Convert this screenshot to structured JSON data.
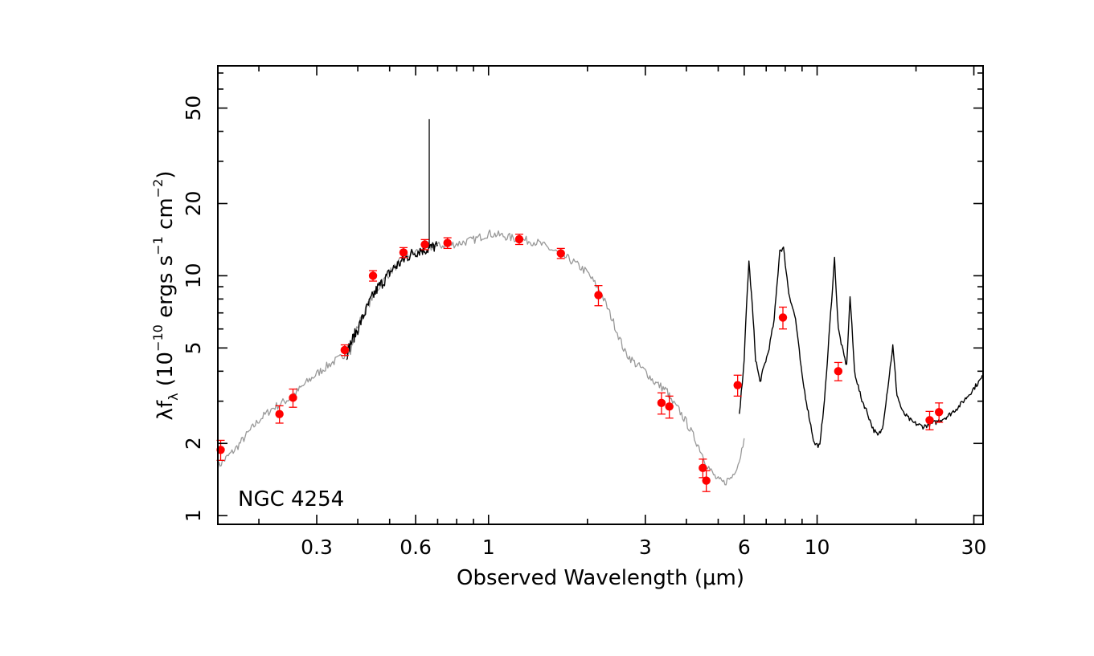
{
  "chart_data": {
    "type": "line",
    "annotation": "NGC 4254",
    "xlabel": "Observed Wavelength (μm)",
    "ylabel": {
      "prefix": "λf",
      "sub": "λ",
      "open": " (10",
      "exp1": "−10",
      "mid": " ergs s",
      "exp2": "−1",
      "mid2": " cm",
      "exp3": "−2",
      "close": ")"
    },
    "x_scale": "log",
    "y_scale": "log",
    "xlim": [
      0.15,
      32
    ],
    "ylim": [
      0.92,
      75
    ],
    "x_ticks": [
      0.3,
      0.6,
      1,
      3,
      6,
      10,
      30
    ],
    "x_tick_labels": [
      "0.3",
      "0.6",
      "1",
      "3",
      "6",
      "10",
      "30"
    ],
    "y_ticks": [
      1,
      2,
      5,
      10,
      20,
      50
    ],
    "y_tick_labels": [
      "1",
      "2",
      "5",
      "10",
      "20",
      "50"
    ],
    "series": [
      {
        "role": "model",
        "color": "#999999",
        "points": [
          [
            0.15,
            1.6
          ],
          [
            0.16,
            1.75
          ],
          [
            0.17,
            1.9
          ],
          [
            0.18,
            2.1
          ],
          [
            0.19,
            2.3
          ],
          [
            0.2,
            2.5
          ],
          [
            0.22,
            2.8
          ],
          [
            0.25,
            3.1
          ],
          [
            0.28,
            3.6
          ],
          [
            0.3,
            3.9
          ],
          [
            0.33,
            4.3
          ],
          [
            0.36,
            4.6
          ],
          [
            0.37,
            4.9
          ],
          [
            0.38,
            4.8
          ],
          [
            0.4,
            6.2
          ],
          [
            0.45,
            8.5
          ],
          [
            0.5,
            10.3
          ],
          [
            0.55,
            11.8
          ],
          [
            0.6,
            12.6
          ],
          [
            0.7,
            13.3
          ],
          [
            0.8,
            13.6
          ],
          [
            0.9,
            14.1
          ],
          [
            1.0,
            15.0
          ],
          [
            1.1,
            14.7
          ],
          [
            1.2,
            14.3
          ],
          [
            1.4,
            13.8
          ],
          [
            1.6,
            12.6
          ],
          [
            1.8,
            11.5
          ],
          [
            2.0,
            10.3
          ],
          [
            2.2,
            8.5
          ],
          [
            2.4,
            6.4
          ],
          [
            2.6,
            4.8
          ],
          [
            2.8,
            4.3
          ],
          [
            3.0,
            4.0
          ],
          [
            3.2,
            3.6
          ],
          [
            3.4,
            3.4
          ],
          [
            3.5,
            3.3
          ],
          [
            3.6,
            3.0
          ],
          [
            3.8,
            2.75
          ],
          [
            4.0,
            2.45
          ],
          [
            4.2,
            2.15
          ],
          [
            4.4,
            1.9
          ],
          [
            4.6,
            1.65
          ],
          [
            4.8,
            1.5
          ],
          [
            5.0,
            1.4
          ],
          [
            5.2,
            1.37
          ],
          [
            5.5,
            1.45
          ],
          [
            5.8,
            1.7
          ],
          [
            6.0,
            2.1
          ]
        ]
      },
      {
        "role": "optical-spectrum",
        "color": "#000000",
        "points": [
          [
            0.37,
            4.7
          ],
          [
            0.38,
            5.2
          ],
          [
            0.39,
            5.6
          ],
          [
            0.4,
            6.0
          ],
          [
            0.42,
            7.0
          ],
          [
            0.44,
            8.0
          ],
          [
            0.46,
            8.9
          ],
          [
            0.48,
            9.5
          ],
          [
            0.5,
            10.3
          ],
          [
            0.52,
            10.9
          ],
          [
            0.55,
            11.6
          ],
          [
            0.58,
            12.3
          ],
          [
            0.62,
            12.8
          ],
          [
            0.65,
            12.9
          ],
          [
            0.68,
            13.2
          ],
          [
            0.7,
            13.3
          ]
        ],
        "line_peak": {
          "x": 0.66,
          "y": 45
        }
      },
      {
        "role": "mid-ir-spectrum",
        "color": "#000000",
        "points": [
          [
            5.8,
            2.6
          ],
          [
            6.0,
            4.5
          ],
          [
            6.1,
            7.5
          ],
          [
            6.2,
            11.5
          ],
          [
            6.35,
            7.5
          ],
          [
            6.5,
            4.5
          ],
          [
            6.7,
            3.6
          ],
          [
            6.9,
            4.2
          ],
          [
            7.1,
            4.8
          ],
          [
            7.4,
            6.5
          ],
          [
            7.7,
            12.8
          ],
          [
            7.9,
            13.0
          ],
          [
            8.2,
            8.5
          ],
          [
            8.6,
            6.6
          ],
          [
            9.0,
            3.8
          ],
          [
            9.4,
            2.7
          ],
          [
            9.8,
            2.0
          ],
          [
            10.2,
            1.95
          ],
          [
            10.6,
            3.4
          ],
          [
            11.0,
            7.0
          ],
          [
            11.3,
            11.8
          ],
          [
            11.6,
            6.0
          ],
          [
            12.0,
            4.8
          ],
          [
            12.3,
            4.2
          ],
          [
            12.6,
            8.2
          ],
          [
            13.0,
            4.0
          ],
          [
            13.6,
            3.1
          ],
          [
            14.2,
            2.7
          ],
          [
            14.8,
            2.3
          ],
          [
            15.3,
            2.15
          ],
          [
            15.8,
            2.3
          ],
          [
            16.4,
            3.4
          ],
          [
            17.0,
            5.1
          ],
          [
            17.5,
            3.2
          ],
          [
            18.2,
            2.7
          ],
          [
            19.5,
            2.45
          ],
          [
            21.0,
            2.35
          ],
          [
            23.0,
            2.45
          ],
          [
            25.0,
            2.6
          ],
          [
            27.0,
            2.85
          ],
          [
            29.0,
            3.2
          ],
          [
            31.0,
            3.6
          ],
          [
            32.0,
            3.8
          ]
        ]
      }
    ],
    "photometry": {
      "color": "#ff0000",
      "points": [
        {
          "x": 0.153,
          "y": 1.88,
          "err": 0.18
        },
        {
          "x": 0.231,
          "y": 2.65,
          "err": 0.22
        },
        {
          "x": 0.254,
          "y": 3.1,
          "err": 0.27
        },
        {
          "x": 0.365,
          "y": 4.9,
          "err": 0.25
        },
        {
          "x": 0.445,
          "y": 10.0,
          "err": 0.5
        },
        {
          "x": 0.551,
          "y": 12.5,
          "err": 0.6
        },
        {
          "x": 0.64,
          "y": 13.5,
          "err": 0.65
        },
        {
          "x": 0.75,
          "y": 13.7,
          "err": 0.7
        },
        {
          "x": 1.24,
          "y": 14.2,
          "err": 0.7
        },
        {
          "x": 1.66,
          "y": 12.4,
          "err": 0.6
        },
        {
          "x": 2.16,
          "y": 8.3,
          "err": 0.8
        },
        {
          "x": 3.36,
          "y": 2.95,
          "err": 0.3
        },
        {
          "x": 3.55,
          "y": 2.85,
          "err": 0.3
        },
        {
          "x": 4.49,
          "y": 1.58,
          "err": 0.14
        },
        {
          "x": 4.6,
          "y": 1.4,
          "err": 0.14
        },
        {
          "x": 5.73,
          "y": 3.5,
          "err": 0.35
        },
        {
          "x": 7.87,
          "y": 6.7,
          "err": 0.7
        },
        {
          "x": 11.6,
          "y": 4.0,
          "err": 0.35
        },
        {
          "x": 22.0,
          "y": 2.5,
          "err": 0.22
        },
        {
          "x": 23.5,
          "y": 2.7,
          "err": 0.25
        }
      ]
    }
  }
}
